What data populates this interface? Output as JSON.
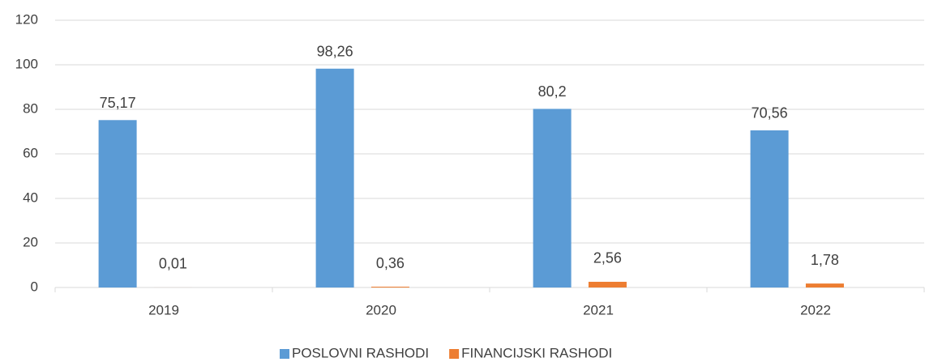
{
  "chart_data": {
    "type": "bar",
    "categories": [
      "2019",
      "2020",
      "2021",
      "2022"
    ],
    "series": [
      {
        "name": "POSLOVNI RASHODI",
        "color": "#5b9bd5",
        "values": [
          75.17,
          98.26,
          80.2,
          70.56
        ],
        "value_labels": [
          "75,17",
          "98,26",
          "80,2",
          "70,56"
        ]
      },
      {
        "name": "FINANCIJSKI RASHODI",
        "color": "#ed7d31",
        "values": [
          0.01,
          0.36,
          2.56,
          1.78
        ],
        "value_labels": [
          "0,01",
          "0,36",
          "2,56",
          "1,78"
        ]
      }
    ],
    "ylim": [
      0,
      120
    ],
    "yticks": [
      0,
      20,
      40,
      60,
      80,
      100,
      120
    ],
    "grid": true,
    "legend": "bottom"
  }
}
